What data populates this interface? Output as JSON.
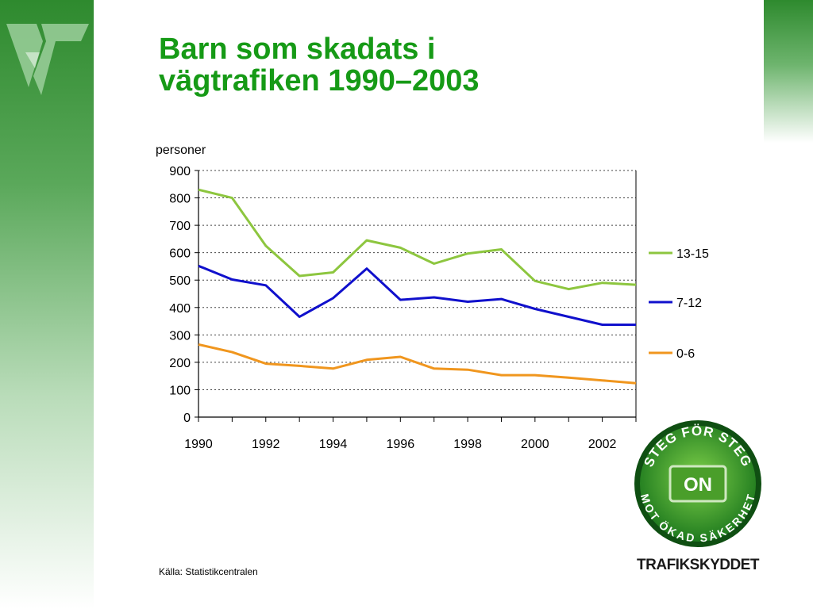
{
  "slide": {
    "title_line1": "Barn som skadats i",
    "title_line2": "vägtrafiken 1990–2003",
    "source": "Källa: Statistikcentralen",
    "title_color": "#169a16"
  },
  "logo": {
    "icon": "vt-logo-icon"
  },
  "badge": {
    "arc_top": "STEG FÖR STEG",
    "arc_bottom": "MOT ÖKAD SÄKERHET",
    "center": "ON",
    "wordmark": "TRAFIKSKYDDET"
  },
  "chart_data": {
    "type": "line",
    "title": "",
    "ylabel": "personer",
    "xlabel": "",
    "x": [
      1990,
      1991,
      1992,
      1993,
      1994,
      1995,
      1996,
      1997,
      1998,
      1999,
      2000,
      2001,
      2002,
      2003
    ],
    "xticks": [
      "1990",
      "1992",
      "1994",
      "1996",
      "1998",
      "2000",
      "2002"
    ],
    "yticks": [
      "0",
      "100",
      "200",
      "300",
      "400",
      "500",
      "600",
      "700",
      "800",
      "900"
    ],
    "ylim": [
      0,
      900
    ],
    "grid": "horizontal-dotted",
    "legend_position": "right",
    "series": [
      {
        "name": "13-15",
        "color": "#8dc63f",
        "values": [
          830,
          800,
          625,
          515,
          528,
          645,
          618,
          560,
          597,
          612,
          497,
          467,
          490,
          483
        ]
      },
      {
        "name": "7-12",
        "color": "#1010cc",
        "values": [
          552,
          502,
          481,
          366,
          434,
          542,
          428,
          437,
          421,
          431,
          395,
          366,
          337,
          337
        ]
      },
      {
        "name": "0-6",
        "color": "#f0961e",
        "values": [
          265,
          237,
          195,
          187,
          177,
          209,
          220,
          177,
          173,
          153,
          153,
          144,
          134,
          124
        ]
      }
    ]
  }
}
